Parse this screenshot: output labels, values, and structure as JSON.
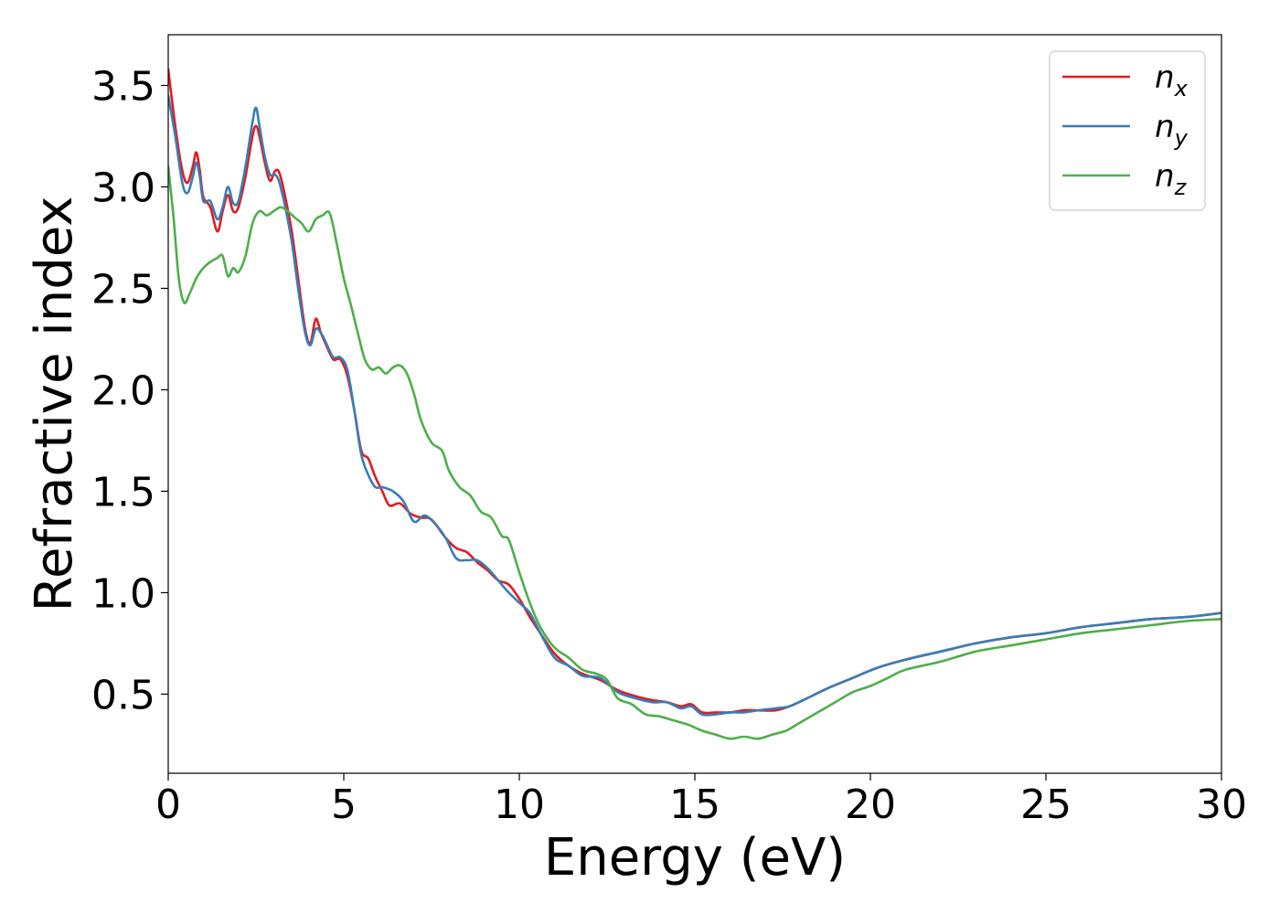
{
  "chart_data": {
    "type": "line",
    "xlabel": "Energy (eV)",
    "ylabel": "Refractive index",
    "xlim": [
      0,
      30
    ],
    "ylim": [
      0.11,
      3.75
    ],
    "xticks": [
      0,
      5,
      10,
      15,
      20,
      25,
      30
    ],
    "yticks": [
      0.5,
      1.0,
      1.5,
      2.0,
      2.5,
      3.0,
      3.5
    ],
    "grid": false,
    "legend_position": "top-right",
    "series": [
      {
        "name": "n",
        "sub": "x",
        "color": "#e41a1c",
        "points": [
          [
            0,
            3.58
          ],
          [
            0.2,
            3.3
          ],
          [
            0.4,
            3.08
          ],
          [
            0.55,
            3.02
          ],
          [
            0.7,
            3.1
          ],
          [
            0.8,
            3.17
          ],
          [
            0.9,
            3.08
          ],
          [
            1.0,
            2.95
          ],
          [
            1.2,
            2.9
          ],
          [
            1.4,
            2.78
          ],
          [
            1.55,
            2.88
          ],
          [
            1.7,
            2.96
          ],
          [
            1.85,
            2.88
          ],
          [
            2.0,
            2.9
          ],
          [
            2.2,
            3.05
          ],
          [
            2.4,
            3.25
          ],
          [
            2.5,
            3.3
          ],
          [
            2.6,
            3.25
          ],
          [
            2.75,
            3.12
          ],
          [
            2.9,
            3.03
          ],
          [
            3.05,
            3.08
          ],
          [
            3.2,
            3.05
          ],
          [
            3.5,
            2.8
          ],
          [
            3.7,
            2.55
          ],
          [
            3.9,
            2.3
          ],
          [
            4.05,
            2.23
          ],
          [
            4.2,
            2.35
          ],
          [
            4.35,
            2.28
          ],
          [
            4.5,
            2.22
          ],
          [
            4.7,
            2.15
          ],
          [
            4.9,
            2.15
          ],
          [
            5.1,
            2.07
          ],
          [
            5.3,
            1.9
          ],
          [
            5.5,
            1.7
          ],
          [
            5.7,
            1.66
          ],
          [
            5.9,
            1.57
          ],
          [
            6.1,
            1.5
          ],
          [
            6.3,
            1.43
          ],
          [
            6.6,
            1.44
          ],
          [
            6.9,
            1.39
          ],
          [
            7.2,
            1.37
          ],
          [
            7.5,
            1.36
          ],
          [
            7.9,
            1.27
          ],
          [
            8.2,
            1.22
          ],
          [
            8.5,
            1.2
          ],
          [
            8.8,
            1.15
          ],
          [
            9.1,
            1.11
          ],
          [
            9.4,
            1.06
          ],
          [
            9.7,
            1.04
          ],
          [
            10.0,
            0.97
          ],
          [
            10.3,
            0.88
          ],
          [
            10.6,
            0.8
          ],
          [
            11.0,
            0.7
          ],
          [
            11.4,
            0.64
          ],
          [
            11.8,
            0.6
          ],
          [
            12.3,
            0.57
          ],
          [
            12.8,
            0.52
          ],
          [
            13.3,
            0.49
          ],
          [
            13.8,
            0.47
          ],
          [
            14.2,
            0.46
          ],
          [
            14.6,
            0.44
          ],
          [
            14.9,
            0.45
          ],
          [
            15.2,
            0.41
          ],
          [
            15.6,
            0.41
          ],
          [
            16.0,
            0.41
          ],
          [
            16.4,
            0.42
          ],
          [
            16.8,
            0.42
          ],
          [
            17.3,
            0.42
          ],
          [
            17.7,
            0.44
          ],
          [
            18.2,
            0.48
          ],
          [
            18.8,
            0.53
          ],
          [
            19.5,
            0.58
          ],
          [
            20.2,
            0.63
          ],
          [
            21.0,
            0.67
          ],
          [
            22.0,
            0.71
          ],
          [
            23.0,
            0.75
          ],
          [
            24.0,
            0.78
          ],
          [
            25.0,
            0.8
          ],
          [
            26.0,
            0.83
          ],
          [
            27.0,
            0.85
          ],
          [
            28.0,
            0.87
          ],
          [
            29.0,
            0.88
          ],
          [
            30.0,
            0.9
          ]
        ]
      },
      {
        "name": "n",
        "sub": "y",
        "color": "#377eb8",
        "points": [
          [
            0,
            3.45
          ],
          [
            0.2,
            3.25
          ],
          [
            0.4,
            3.02
          ],
          [
            0.55,
            2.97
          ],
          [
            0.7,
            3.05
          ],
          [
            0.8,
            3.12
          ],
          [
            0.9,
            3.05
          ],
          [
            1.0,
            2.93
          ],
          [
            1.2,
            2.93
          ],
          [
            1.4,
            2.84
          ],
          [
            1.55,
            2.9
          ],
          [
            1.7,
            3.0
          ],
          [
            1.85,
            2.92
          ],
          [
            2.0,
            2.93
          ],
          [
            2.2,
            3.1
          ],
          [
            2.4,
            3.32
          ],
          [
            2.5,
            3.39
          ],
          [
            2.6,
            3.3
          ],
          [
            2.75,
            3.15
          ],
          [
            2.9,
            3.06
          ],
          [
            3.05,
            3.06
          ],
          [
            3.2,
            3.0
          ],
          [
            3.5,
            2.75
          ],
          [
            3.7,
            2.5
          ],
          [
            3.9,
            2.28
          ],
          [
            4.05,
            2.22
          ],
          [
            4.2,
            2.3
          ],
          [
            4.35,
            2.28
          ],
          [
            4.5,
            2.23
          ],
          [
            4.7,
            2.16
          ],
          [
            4.9,
            2.16
          ],
          [
            5.1,
            2.1
          ],
          [
            5.3,
            1.9
          ],
          [
            5.5,
            1.68
          ],
          [
            5.7,
            1.58
          ],
          [
            5.9,
            1.52
          ],
          [
            6.1,
            1.52
          ],
          [
            6.4,
            1.5
          ],
          [
            6.7,
            1.45
          ],
          [
            7.0,
            1.35
          ],
          [
            7.3,
            1.38
          ],
          [
            7.6,
            1.34
          ],
          [
            7.9,
            1.27
          ],
          [
            8.2,
            1.17
          ],
          [
            8.5,
            1.16
          ],
          [
            8.8,
            1.16
          ],
          [
            9.1,
            1.12
          ],
          [
            9.4,
            1.06
          ],
          [
            9.7,
            1.0
          ],
          [
            10.0,
            0.95
          ],
          [
            10.3,
            0.9
          ],
          [
            10.6,
            0.8
          ],
          [
            11.0,
            0.68
          ],
          [
            11.4,
            0.64
          ],
          [
            11.8,
            0.59
          ],
          [
            12.3,
            0.58
          ],
          [
            12.8,
            0.51
          ],
          [
            13.3,
            0.48
          ],
          [
            13.8,
            0.46
          ],
          [
            14.2,
            0.46
          ],
          [
            14.6,
            0.43
          ],
          [
            14.9,
            0.44
          ],
          [
            15.2,
            0.4
          ],
          [
            15.6,
            0.4
          ],
          [
            16.0,
            0.41
          ],
          [
            16.4,
            0.41
          ],
          [
            16.8,
            0.42
          ],
          [
            17.3,
            0.43
          ],
          [
            17.7,
            0.44
          ],
          [
            18.2,
            0.48
          ],
          [
            18.8,
            0.53
          ],
          [
            19.5,
            0.58
          ],
          [
            20.2,
            0.63
          ],
          [
            21.0,
            0.67
          ],
          [
            22.0,
            0.71
          ],
          [
            23.0,
            0.75
          ],
          [
            24.0,
            0.78
          ],
          [
            25.0,
            0.8
          ],
          [
            26.0,
            0.83
          ],
          [
            27.0,
            0.85
          ],
          [
            28.0,
            0.87
          ],
          [
            29.0,
            0.88
          ],
          [
            30.0,
            0.9
          ]
        ]
      },
      {
        "name": "n",
        "sub": "z",
        "color": "#4daf4a",
        "points": [
          [
            0,
            3.1
          ],
          [
            0.15,
            2.85
          ],
          [
            0.3,
            2.55
          ],
          [
            0.45,
            2.43
          ],
          [
            0.6,
            2.47
          ],
          [
            0.8,
            2.55
          ],
          [
            1.0,
            2.6
          ],
          [
            1.2,
            2.63
          ],
          [
            1.4,
            2.65
          ],
          [
            1.55,
            2.66
          ],
          [
            1.7,
            2.56
          ],
          [
            1.85,
            2.6
          ],
          [
            2.0,
            2.58
          ],
          [
            2.2,
            2.66
          ],
          [
            2.4,
            2.82
          ],
          [
            2.6,
            2.88
          ],
          [
            2.8,
            2.86
          ],
          [
            3.0,
            2.88
          ],
          [
            3.2,
            2.9
          ],
          [
            3.4,
            2.88
          ],
          [
            3.6,
            2.85
          ],
          [
            3.8,
            2.82
          ],
          [
            4.0,
            2.78
          ],
          [
            4.2,
            2.84
          ],
          [
            4.4,
            2.86
          ],
          [
            4.6,
            2.87
          ],
          [
            4.8,
            2.72
          ],
          [
            5.0,
            2.55
          ],
          [
            5.2,
            2.42
          ],
          [
            5.4,
            2.28
          ],
          [
            5.6,
            2.15
          ],
          [
            5.8,
            2.1
          ],
          [
            6.0,
            2.11
          ],
          [
            6.2,
            2.08
          ],
          [
            6.4,
            2.11
          ],
          [
            6.6,
            2.12
          ],
          [
            6.8,
            2.08
          ],
          [
            7.0,
            1.98
          ],
          [
            7.2,
            1.85
          ],
          [
            7.5,
            1.74
          ],
          [
            7.8,
            1.7
          ],
          [
            8.0,
            1.6
          ],
          [
            8.3,
            1.52
          ],
          [
            8.6,
            1.48
          ],
          [
            8.9,
            1.4
          ],
          [
            9.2,
            1.37
          ],
          [
            9.5,
            1.28
          ],
          [
            9.7,
            1.26
          ],
          [
            10.0,
            1.1
          ],
          [
            10.3,
            0.95
          ],
          [
            10.6,
            0.83
          ],
          [
            11.0,
            0.73
          ],
          [
            11.4,
            0.68
          ],
          [
            11.8,
            0.62
          ],
          [
            12.2,
            0.6
          ],
          [
            12.5,
            0.57
          ],
          [
            12.8,
            0.48
          ],
          [
            13.2,
            0.45
          ],
          [
            13.6,
            0.4
          ],
          [
            14.0,
            0.39
          ],
          [
            14.4,
            0.37
          ],
          [
            14.8,
            0.35
          ],
          [
            15.2,
            0.32
          ],
          [
            15.6,
            0.3
          ],
          [
            16.0,
            0.28
          ],
          [
            16.4,
            0.29
          ],
          [
            16.8,
            0.28
          ],
          [
            17.2,
            0.3
          ],
          [
            17.6,
            0.32
          ],
          [
            18.0,
            0.36
          ],
          [
            18.5,
            0.41
          ],
          [
            19.0,
            0.46
          ],
          [
            19.5,
            0.51
          ],
          [
            20.0,
            0.54
          ],
          [
            20.5,
            0.58
          ],
          [
            21.0,
            0.62
          ],
          [
            22.0,
            0.66
          ],
          [
            23.0,
            0.71
          ],
          [
            24.0,
            0.74
          ],
          [
            25.0,
            0.77
          ],
          [
            26.0,
            0.8
          ],
          [
            27.0,
            0.82
          ],
          [
            28.0,
            0.84
          ],
          [
            29.0,
            0.86
          ],
          [
            30.0,
            0.87
          ]
        ]
      }
    ]
  }
}
